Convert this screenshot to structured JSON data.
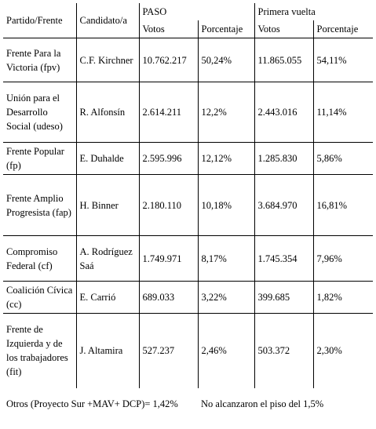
{
  "headers": {
    "party": "Partido/Frente",
    "candidate": "Candidato/a",
    "paso": "PASO",
    "first_round": "Primera vuelta",
    "votes": "Votos",
    "percentage": "Porcentaje"
  },
  "rows": [
    {
      "party": "Frente Para la Victoria (fpv)",
      "candidate": "C.F. Kirchner",
      "paso_votes": "10.762.217",
      "paso_pct": "50,24%",
      "fr_votes": "11.865.055",
      "fr_pct": "54,11%"
    },
    {
      "party": "Unión para el Desarrollo Social (udeso)",
      "candidate": "R. Alfonsín",
      "paso_votes": "2.614.211",
      "paso_pct": "12,2%",
      "fr_votes": "2.443.016",
      "fr_pct": "11,14%"
    },
    {
      "party": "Frente Popular (fp)",
      "candidate": "E. Duhalde",
      "paso_votes": "2.595.996",
      "paso_pct": "12,12%",
      "fr_votes": "1.285.830",
      "fr_pct": "5,86%"
    },
    {
      "party": "Frente Amplio Progresista (fap)",
      "candidate": "H. Binner",
      "paso_votes": "2.180.110",
      "paso_pct": "10,18%",
      "fr_votes": "3.684.970",
      "fr_pct": "16,81%"
    },
    {
      "party": "Compromiso Federal (cf)",
      "candidate": "A. Rodríguez Saá",
      "paso_votes": "1.749.971",
      "paso_pct": "8,17%",
      "fr_votes": "1.745.354",
      "fr_pct": "7,96%"
    },
    {
      "party": "Coalición Cívica (cc)",
      "candidate": "E. Carrió",
      "paso_votes": "689.033",
      "paso_pct": "3,22%",
      "fr_votes": "399.685",
      "fr_pct": "1,82%"
    },
    {
      "party": "Frente de Izquierda y de los trabajadores (fit)",
      "candidate": "J. Altamira",
      "paso_votes": "527.237",
      "paso_pct": "2,46%",
      "fr_votes": "503.372",
      "fr_pct": "2,30%"
    }
  ],
  "footer": {
    "others": "Otros (Proyecto Sur +MAV+ DCP)= 1,42%",
    "note": "No alcanzaron el piso del 1,5%"
  }
}
